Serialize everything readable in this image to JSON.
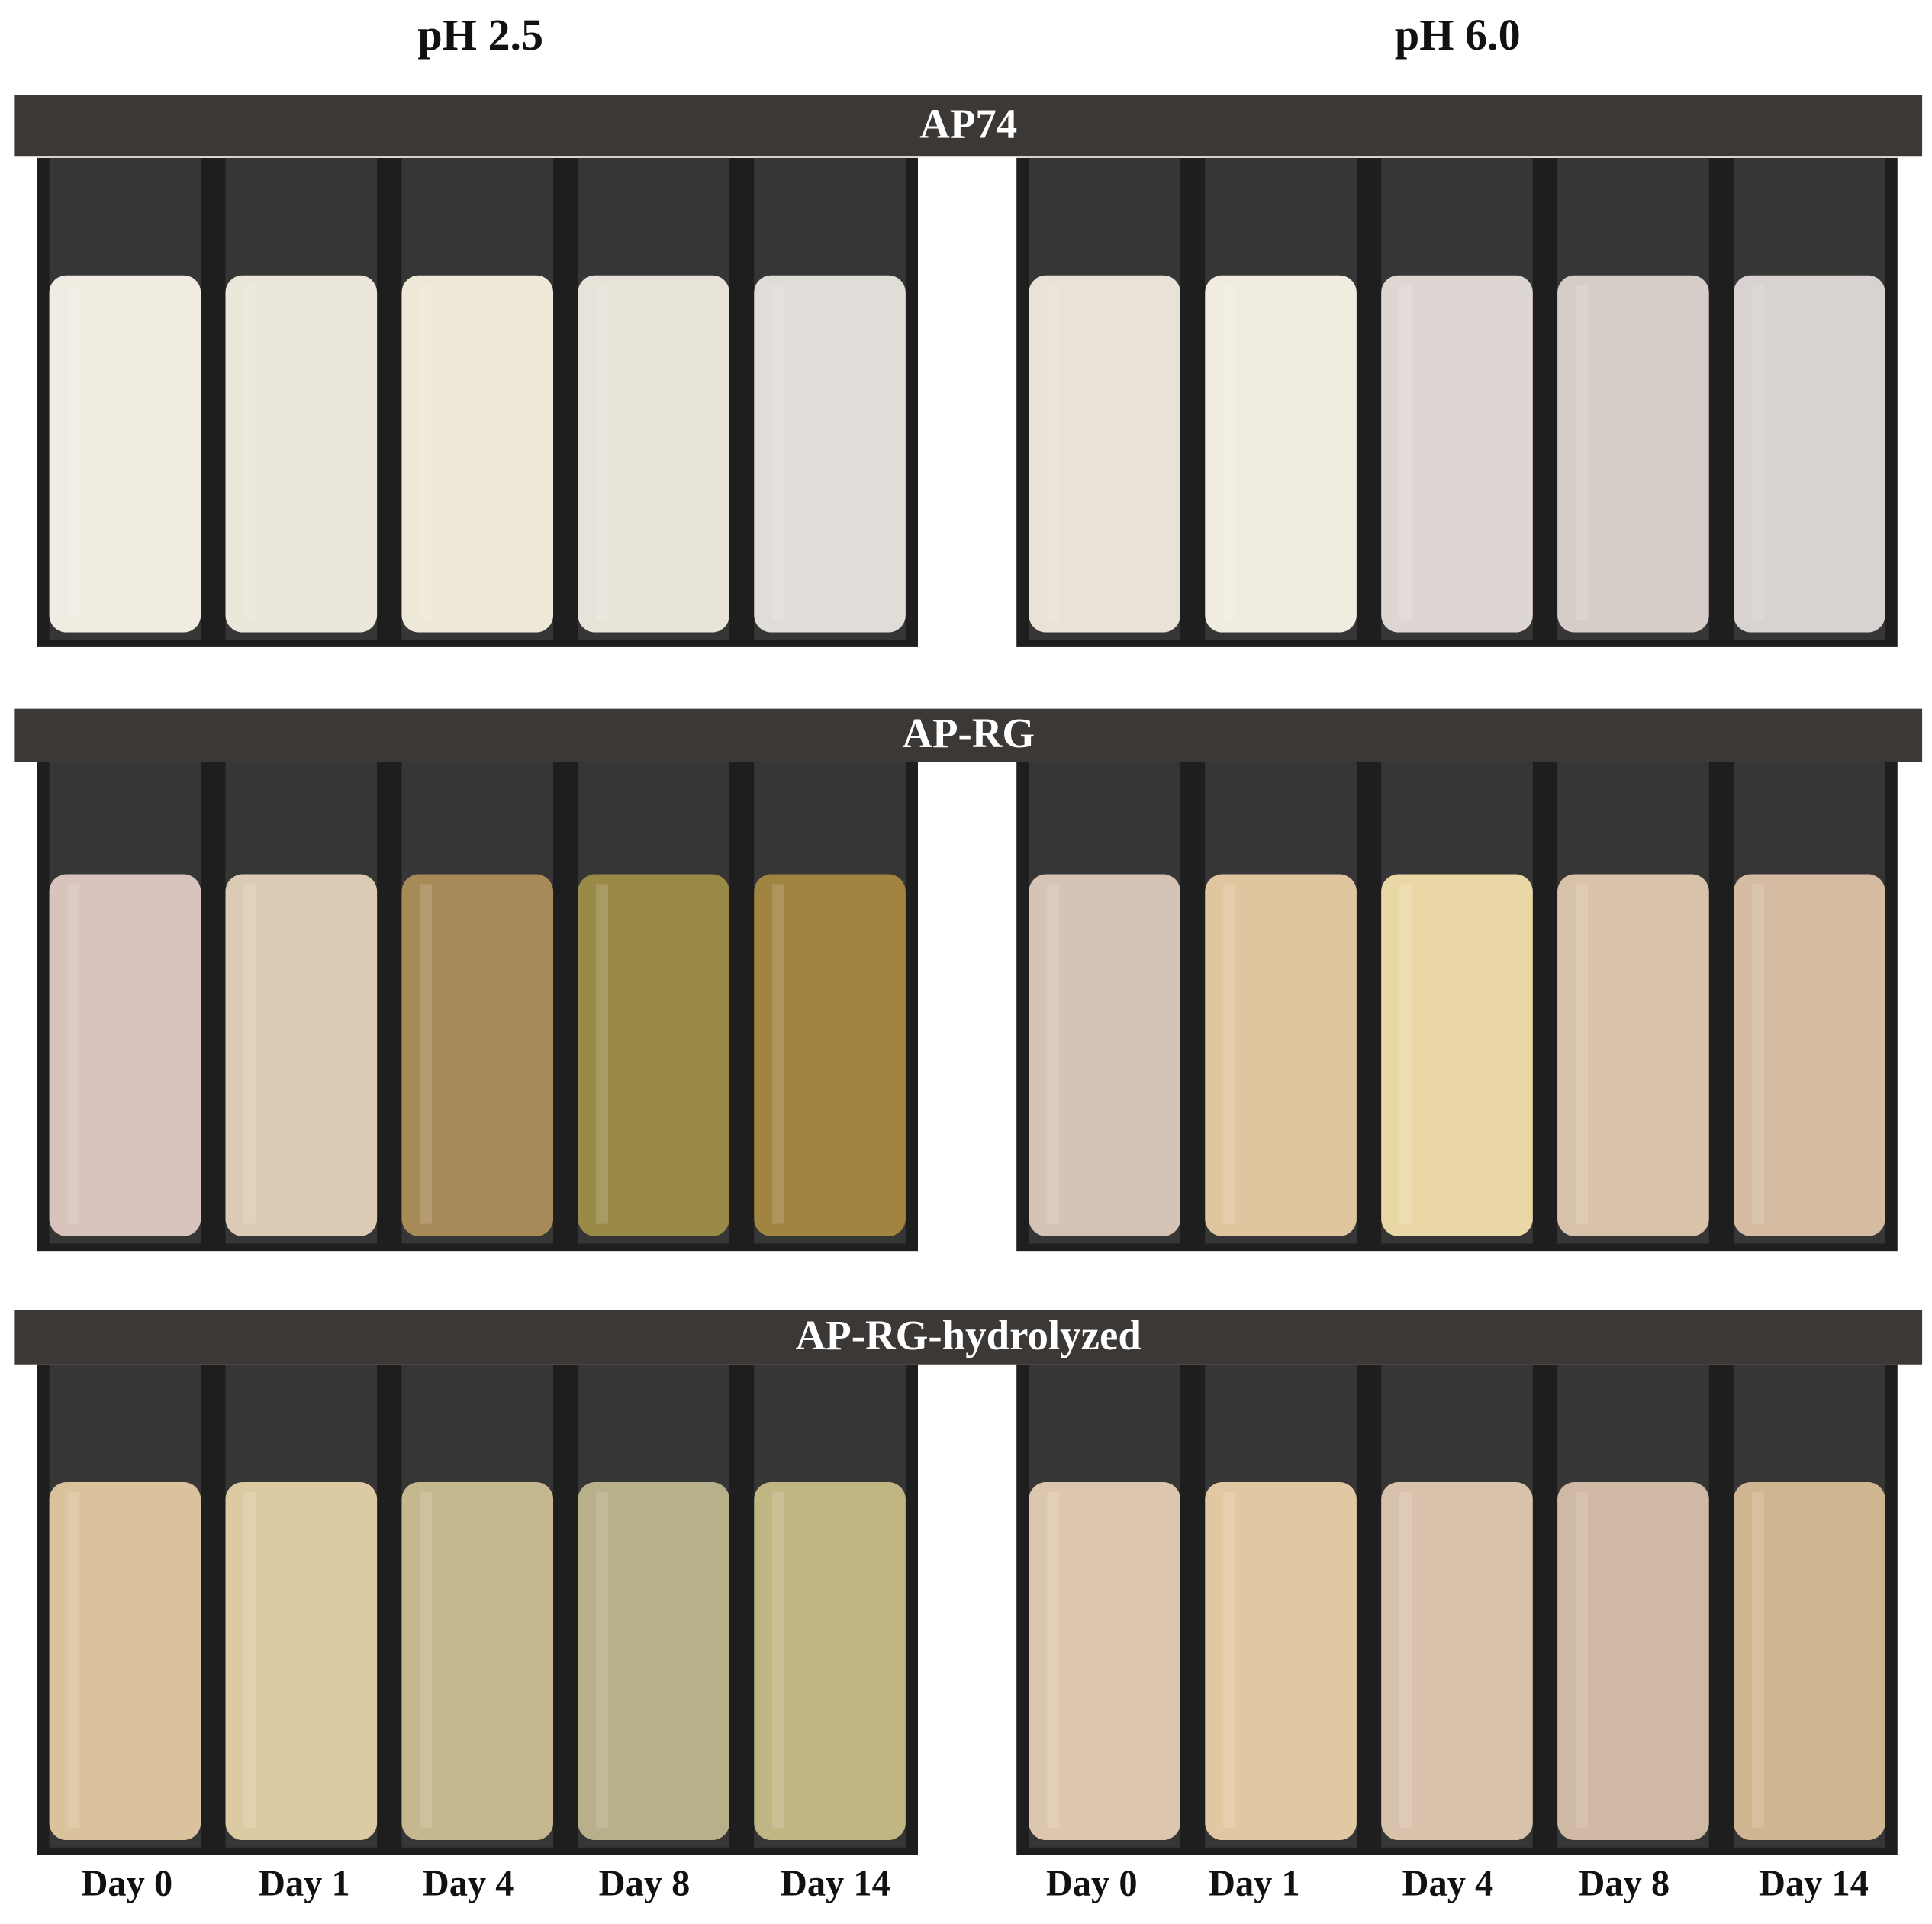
{
  "columns": [
    "pH 2.5",
    "pH 6.0"
  ],
  "rows": [
    "AP74",
    "AP-RG",
    "AP-RG-hydrolyzed"
  ],
  "days": [
    "Day 0",
    "Day 1",
    "Day 4",
    "Day 8",
    "Day 14"
  ]
}
